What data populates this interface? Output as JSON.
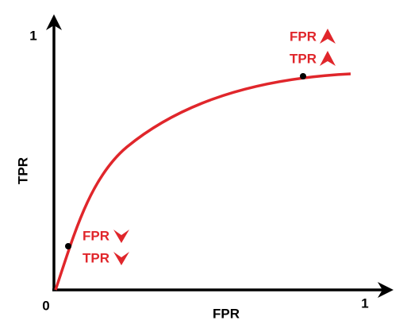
{
  "axes": {
    "x_label": "FPR",
    "y_label": "TPR",
    "origin_label": "0",
    "x_max_label": "1",
    "y_max_label": "1"
  },
  "annotations": [
    {
      "lines": [
        "FPR",
        "TPR"
      ]
    },
    {
      "lines": [
        "FPR",
        "TPR"
      ]
    }
  ]
}
